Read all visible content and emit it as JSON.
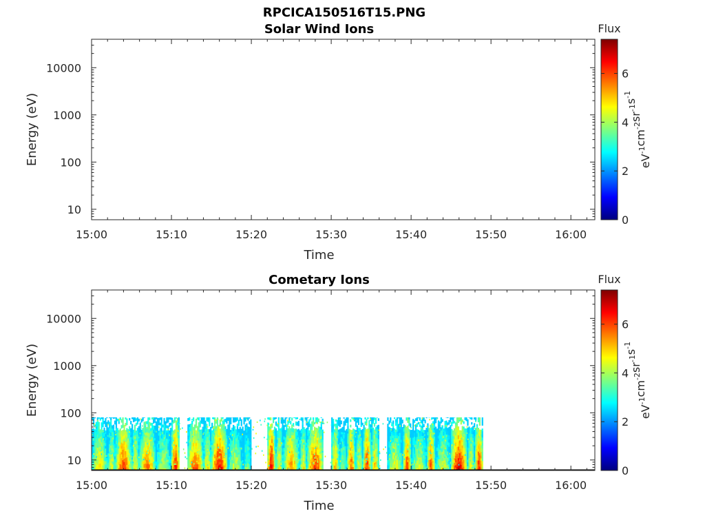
{
  "figure": {
    "title": "RPCICA150516T15.PNG"
  },
  "chart_data": [
    {
      "type": "heatmap",
      "title": "Solar Wind Ions",
      "xlabel": "Time",
      "ylabel": "Energy (eV)",
      "xlim": [
        "15:00",
        "16:03"
      ],
      "ylim": [
        6,
        40000
      ],
      "yscale": "log",
      "xticks": [
        "15:00",
        "15:10",
        "15:20",
        "15:30",
        "15:40",
        "15:50",
        "16:00"
      ],
      "yticks": [
        10,
        100,
        1000,
        10000
      ],
      "ytick_labels": [
        "10",
        "100",
        "1000",
        "10000"
      ],
      "colorbar": {
        "title": "Flux",
        "label": "eV-1cm-2sr-1s-1",
        "label_base": [
          "eV",
          "cm",
          "sr",
          "s"
        ],
        "label_sup": [
          "-1",
          "-2",
          "-1",
          "-1"
        ],
        "range": [
          0,
          7.4
        ],
        "ticks": [
          "0",
          "2",
          "4",
          "6"
        ],
        "colormap": "jet"
      },
      "segments": []
    },
    {
      "type": "heatmap",
      "title": "Cometary Ions",
      "xlabel": "Time",
      "ylabel": "Energy (eV)",
      "xlim": [
        "15:00",
        "16:03"
      ],
      "ylim": [
        6,
        40000
      ],
      "yscale": "log",
      "xticks": [
        "15:00",
        "15:10",
        "15:20",
        "15:30",
        "15:40",
        "15:50",
        "16:00"
      ],
      "yticks": [
        10,
        100,
        1000,
        10000
      ],
      "ytick_labels": [
        "10",
        "100",
        "1000",
        "10000"
      ],
      "colorbar": {
        "title": "Flux",
        "label": "eV-1cm-2sr-1s-1",
        "label_base": [
          "eV",
          "cm",
          "sr",
          "s"
        ],
        "label_sup": [
          "-1",
          "-2",
          "-1",
          "-1"
        ],
        "range": [
          0,
          7.4
        ],
        "ticks": [
          "0",
          "2",
          "4",
          "6"
        ],
        "colormap": "jet"
      },
      "energy_max": 80,
      "segments": [
        {
          "start": "15:00",
          "end": "15:02",
          "flux": 4.6
        },
        {
          "start": "15:02",
          "end": "15:03",
          "flux": 4.2
        },
        {
          "start": "15:03",
          "end": "15:05",
          "flux": 5.8
        },
        {
          "start": "15:05",
          "end": "15:06",
          "flux": 4.5
        },
        {
          "start": "15:06",
          "end": "15:08",
          "flux": 5.4
        },
        {
          "start": "15:08",
          "end": "15:10",
          "flux": 4.0
        },
        {
          "start": "15:10",
          "end": "15:11",
          "flux": 6.1
        },
        {
          "start": "15:12",
          "end": "15:14",
          "flux": 5.6
        },
        {
          "start": "15:14",
          "end": "15:15",
          "flux": 4.6
        },
        {
          "start": "15:15",
          "end": "15:17",
          "flux": 6.2
        },
        {
          "start": "15:17",
          "end": "15:19",
          "flux": 4.1
        },
        {
          "start": "15:19",
          "end": "15:20",
          "flux": 3.6
        },
        {
          "start": "15:22",
          "end": "15:23",
          "flux": 6.4
        },
        {
          "start": "15:23",
          "end": "15:24",
          "flux": 4.4
        },
        {
          "start": "15:24",
          "end": "15:26",
          "flux": 5.2
        },
        {
          "start": "15:26",
          "end": "15:27",
          "flux": 4.5
        },
        {
          "start": "15:27",
          "end": "15:29",
          "flux": 5.8
        },
        {
          "start": "15:30",
          "end": "15:31",
          "flux": 5.0
        },
        {
          "start": "15:31",
          "end": "15:32",
          "flux": 3.8
        },
        {
          "start": "15:32",
          "end": "15:33",
          "flux": 5.6
        },
        {
          "start": "15:33",
          "end": "15:34",
          "flux": 4.2
        },
        {
          "start": "15:34",
          "end": "15:35",
          "flux": 5.9
        },
        {
          "start": "15:35",
          "end": "15:36",
          "flux": 4.8
        },
        {
          "start": "15:37",
          "end": "15:39",
          "flux": 4.3
        },
        {
          "start": "15:39",
          "end": "15:40",
          "flux": 5.7
        },
        {
          "start": "15:40",
          "end": "15:42",
          "flux": 4.2
        },
        {
          "start": "15:42",
          "end": "15:43",
          "flux": 5.6
        },
        {
          "start": "15:43",
          "end": "15:45",
          "flux": 4.1
        },
        {
          "start": "15:45",
          "end": "15:47",
          "flux": 6.3
        },
        {
          "start": "15:47",
          "end": "15:48",
          "flux": 4.3
        },
        {
          "start": "15:48",
          "end": "15:49",
          "flux": 5.9
        }
      ]
    }
  ]
}
